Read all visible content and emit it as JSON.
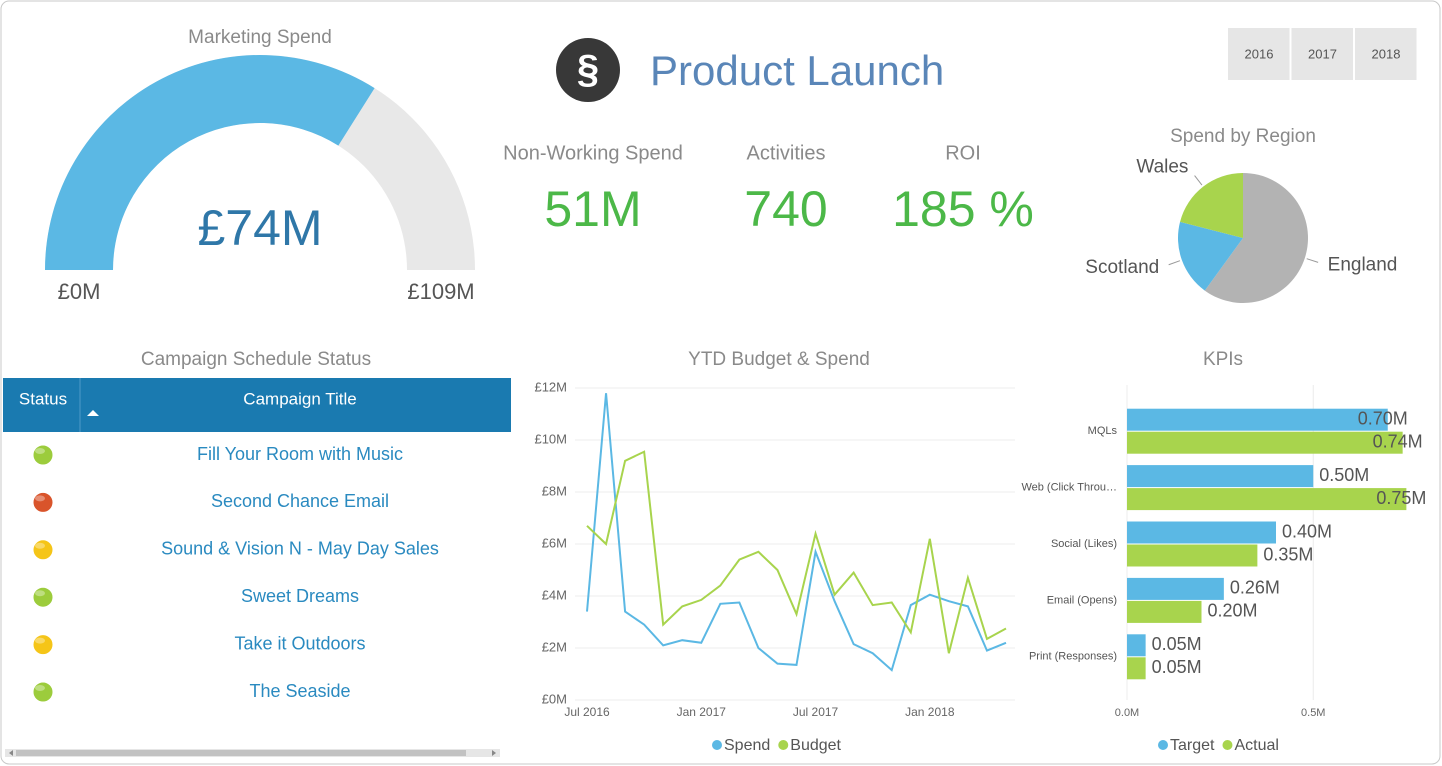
{
  "header": {
    "logo": "§",
    "title": "Product Launch",
    "years": [
      "2016",
      "2017",
      "2018"
    ]
  },
  "kpis": [
    {
      "label": "Non-Working Spend",
      "value": "51M"
    },
    {
      "label": "Activities",
      "value": "740"
    },
    {
      "label": "ROI",
      "value": "185 %"
    }
  ],
  "table": {
    "title": "Campaign Schedule Status",
    "columns": [
      "Status",
      "Campaign Title"
    ],
    "rows": [
      {
        "status_color": "#9ccc3c",
        "title": "Fill Your Room with Music"
      },
      {
        "status_color": "#d9542b",
        "title": "Second Chance Email"
      },
      {
        "status_color": "#f5c518",
        "title": "Sound & Vision N - May Day Sales"
      },
      {
        "status_color": "#9ccc3c",
        "title": "Sweet Dreams"
      },
      {
        "status_color": "#f5c518",
        "title": "Take it Outdoors"
      },
      {
        "status_color": "#9ccc3c",
        "title": "The Seaside"
      }
    ]
  },
  "chart_data": [
    {
      "type": "gauge",
      "title": "Marketing Spend",
      "value": 74,
      "value_label": "£74M",
      "ylim": [
        0,
        109
      ],
      "yticks": [
        {
          "value": 0,
          "label": "£0M"
        },
        {
          "value": 109,
          "label": "£109M"
        }
      ],
      "color": "#5bb8e4",
      "track_color": "#e8e8e8"
    },
    {
      "type": "pie",
      "title": "Spend by Region",
      "categories": [
        "England",
        "Scotland",
        "Wales"
      ],
      "values": [
        60,
        19,
        21
      ],
      "colors": [
        "#b3b3b3",
        "#5bb8e4",
        "#a8d44d"
      ]
    },
    {
      "type": "line",
      "title": "YTD Budget & Spend",
      "categories": [
        "Jul 2016",
        null,
        null,
        null,
        null,
        null,
        "Jan 2017",
        null,
        null,
        null,
        null,
        null,
        "Jul 2017",
        null,
        null,
        null,
        null,
        null,
        "Jan 2018",
        null,
        null,
        null,
        null
      ],
      "series": [
        {
          "name": "Spend",
          "color": "#5bb8e4",
          "values": [
            3.4,
            11.8,
            3.4,
            2.9,
            2.1,
            2.3,
            2.2,
            3.7,
            3.75,
            2.0,
            1.4,
            1.35,
            5.7,
            3.8,
            2.15,
            1.8,
            1.15,
            3.65,
            4.05,
            3.8,
            3.6,
            1.9,
            2.2
          ]
        },
        {
          "name": "Budget",
          "color": "#a8d44d",
          "values": [
            6.7,
            6.0,
            9.2,
            9.55,
            2.9,
            3.6,
            3.85,
            4.4,
            5.4,
            5.7,
            5.0,
            3.3,
            6.4,
            4.05,
            4.9,
            3.65,
            3.75,
            2.6,
            6.2,
            1.8,
            4.7,
            2.35,
            2.75
          ]
        }
      ],
      "ylim": [
        0,
        12
      ],
      "yticks": [
        {
          "value": 0,
          "label": "£0M"
        },
        {
          "value": 2,
          "label": "£2M"
        },
        {
          "value": 4,
          "label": "£4M"
        },
        {
          "value": 6,
          "label": "£6M"
        },
        {
          "value": 8,
          "label": "£8M"
        },
        {
          "value": 10,
          "label": "£10M"
        },
        {
          "value": 12,
          "label": "£12M"
        }
      ],
      "grid": true
    },
    {
      "type": "hbar",
      "title": "KPIs",
      "categories": [
        "MQLs",
        "Web (Click Throu…",
        "Social (Likes)",
        "Email (Opens)",
        "Print (Responses)"
      ],
      "series": [
        {
          "name": "Target",
          "color": "#5bb8e4",
          "values": [
            0.7,
            0.5,
            0.4,
            0.26,
            0.05
          ],
          "value_labels": [
            "0.70M",
            "0.50M",
            "0.40M",
            "0.26M",
            "0.05M"
          ]
        },
        {
          "name": "Actual",
          "color": "#a8d44d",
          "values": [
            0.74,
            0.75,
            0.35,
            0.2,
            0.05
          ],
          "value_labels": [
            "0.74M",
            "0.75M",
            "0.35M",
            "0.20M",
            "0.05M"
          ]
        }
      ],
      "xlim": [
        0,
        0.8
      ],
      "xticks": [
        {
          "value": 0,
          "label": "0.0M"
        },
        {
          "value": 0.5,
          "label": "0.5M"
        }
      ],
      "grid": true
    }
  ]
}
